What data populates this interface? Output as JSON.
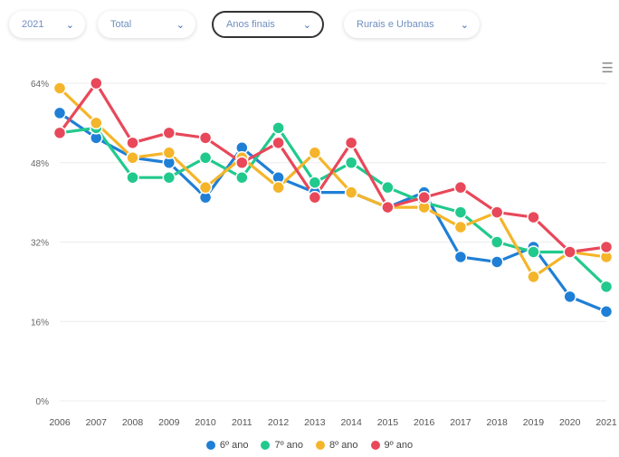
{
  "filters": [
    {
      "value": "2021",
      "chevron": "chevron-down-icon"
    },
    {
      "value": "Total",
      "chevron": "chevron-down-icon"
    },
    {
      "value": "Anos finais",
      "chevron": "chevron-down-icon"
    },
    {
      "value": "Rurais e Urbanas",
      "chevron": "chevron-down-icon"
    }
  ],
  "menu_icon": "hamburger-menu-icon",
  "chart_data": {
    "type": "line",
    "title": "",
    "xlabel": "",
    "ylabel": "",
    "ylim": [
      0,
      64
    ],
    "yticks": [
      0,
      16,
      32,
      48,
      64
    ],
    "ytick_labels": [
      "0%",
      "16%",
      "32%",
      "48%",
      "64%"
    ],
    "grid": true,
    "legend_position": "bottom",
    "categories": [
      "2006",
      "2007",
      "2008",
      "2009",
      "2010",
      "2011",
      "2012",
      "2013",
      "2014",
      "2015",
      "2016",
      "2017",
      "2018",
      "2019",
      "2020",
      "2021"
    ],
    "series": [
      {
        "name": "6º ano",
        "color": "#1f7fd6",
        "values": [
          58,
          53,
          49,
          48,
          41,
          51,
          45,
          42,
          42,
          39,
          42,
          29,
          28,
          31,
          21,
          18
        ]
      },
      {
        "name": "7º ano",
        "color": "#22c98d",
        "values": [
          54,
          55,
          45,
          45,
          49,
          45,
          55,
          44,
          48,
          43,
          40,
          38,
          32,
          30,
          30,
          23
        ]
      },
      {
        "name": "8º ano",
        "color": "#f5b52a",
        "values": [
          63,
          56,
          49,
          50,
          43,
          49,
          43,
          50,
          42,
          39,
          39,
          35,
          38,
          25,
          30,
          29
        ]
      },
      {
        "name": "9º ano",
        "color": "#e8485a",
        "values": [
          54,
          64,
          52,
          54,
          53,
          48,
          52,
          41,
          52,
          39,
          41,
          43,
          38,
          37,
          30,
          31
        ]
      }
    ]
  }
}
